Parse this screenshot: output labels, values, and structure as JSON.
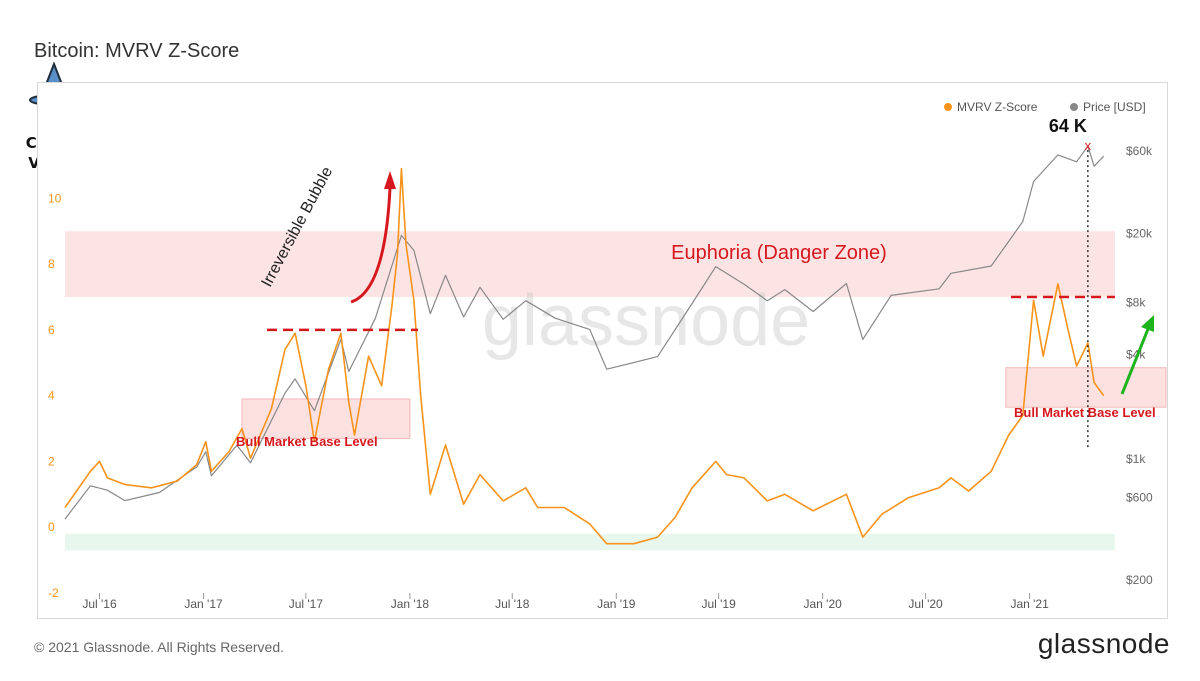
{
  "header": {
    "title": "Bitcoin: MVRV Z-Score"
  },
  "footer": {
    "copyright": "© 2021 Glassnode. All Rights Reserved.",
    "logo_text": "glassnode"
  },
  "watermark": {
    "text": "glassnode"
  },
  "brand_logo": {
    "line1": "Crypto",
    "line2": "VizArt"
  },
  "colors": {
    "mvrv": "#f7931a",
    "price": "#888888",
    "danger": "#d6171d",
    "green_arrow": "#1db31d",
    "danger_zone_fill": "#fde1e1",
    "safe_zone_fill": "#e4f6ec"
  },
  "chart_data": {
    "type": "line",
    "title": "Bitcoin: MVRV Z-Score",
    "x_ticks": [
      "Jul '16",
      "Jan '17",
      "Jul '17",
      "Jan '18",
      "Jul '18",
      "Jan '19",
      "Jul '19",
      "Jan '20",
      "Jul '20",
      "Jan '21"
    ],
    "y_left": {
      "ticks": [
        "-2",
        "0",
        "2",
        "4",
        "6",
        "8",
        "10"
      ],
      "ylim": [
        -2,
        11.5
      ]
    },
    "y_right": {
      "ticks": [
        "$200",
        "$600",
        "$1k",
        "$4k",
        "$8k",
        "$20k",
        "$60k"
      ],
      "scale": "log"
    },
    "legend": {
      "position": "top-right",
      "items": [
        "MVRV Z-Score",
        "Price [USD]"
      ]
    },
    "series": [
      {
        "name": "MVRV Z-Score",
        "axis": "left",
        "points": [
          [
            "2016-05-01",
            0.6
          ],
          [
            "2016-06-15",
            1.7
          ],
          [
            "2016-07-01",
            2.0
          ],
          [
            "2016-07-15",
            1.5
          ],
          [
            "2016-08-15",
            1.3
          ],
          [
            "2016-10-01",
            1.2
          ],
          [
            "2016-11-15",
            1.4
          ],
          [
            "2016-12-20",
            1.9
          ],
          [
            "2017-01-05",
            2.6
          ],
          [
            "2017-01-15",
            1.7
          ],
          [
            "2017-02-15",
            2.3
          ],
          [
            "2017-03-10",
            3.0
          ],
          [
            "2017-03-25",
            2.1
          ],
          [
            "2017-05-01",
            3.6
          ],
          [
            "2017-05-25",
            5.4
          ],
          [
            "2017-06-12",
            5.9
          ],
          [
            "2017-07-01",
            4.3
          ],
          [
            "2017-07-16",
            2.6
          ],
          [
            "2017-08-10",
            4.8
          ],
          [
            "2017-09-01",
            5.9
          ],
          [
            "2017-09-15",
            3.8
          ],
          [
            "2017-09-25",
            2.8
          ],
          [
            "2017-10-20",
            5.2
          ],
          [
            "2017-11-12",
            4.3
          ],
          [
            "2017-11-30",
            6.7
          ],
          [
            "2017-12-10",
            8.3
          ],
          [
            "2017-12-17",
            10.9
          ],
          [
            "2017-12-25",
            8.6
          ],
          [
            "2018-01-08",
            6.9
          ],
          [
            "2018-01-20",
            4.0
          ],
          [
            "2018-02-06",
            1.0
          ],
          [
            "2018-03-05",
            2.5
          ],
          [
            "2018-04-06",
            0.7
          ],
          [
            "2018-05-05",
            1.6
          ],
          [
            "2018-06-15",
            0.8
          ],
          [
            "2018-07-25",
            1.2
          ],
          [
            "2018-08-15",
            0.6
          ],
          [
            "2018-10-01",
            0.6
          ],
          [
            "2018-11-15",
            0.1
          ],
          [
            "2018-12-15",
            -0.5
          ],
          [
            "2019-02-01",
            -0.5
          ],
          [
            "2019-03-15",
            -0.3
          ],
          [
            "2019-04-15",
            0.3
          ],
          [
            "2019-05-15",
            1.2
          ],
          [
            "2019-06-26",
            2.0
          ],
          [
            "2019-07-15",
            1.6
          ],
          [
            "2019-08-15",
            1.5
          ],
          [
            "2019-09-25",
            0.8
          ],
          [
            "2019-10-26",
            1.0
          ],
          [
            "2019-12-15",
            0.5
          ],
          [
            "2020-02-12",
            1.0
          ],
          [
            "2020-03-12",
            -0.3
          ],
          [
            "2020-04-15",
            0.4
          ],
          [
            "2020-06-01",
            0.9
          ],
          [
            "2020-07-25",
            1.2
          ],
          [
            "2020-08-15",
            1.5
          ],
          [
            "2020-09-15",
            1.1
          ],
          [
            "2020-10-25",
            1.7
          ],
          [
            "2020-11-25",
            2.8
          ],
          [
            "2020-12-20",
            3.4
          ],
          [
            "2021-01-08",
            6.9
          ],
          [
            "2021-01-25",
            5.2
          ],
          [
            "2021-02-20",
            7.4
          ],
          [
            "2021-03-10",
            6.0
          ],
          [
            "2021-03-25",
            4.9
          ],
          [
            "2021-04-14",
            5.6
          ],
          [
            "2021-04-25",
            4.4
          ],
          [
            "2021-05-12",
            4.0
          ]
        ]
      },
      {
        "name": "Price [USD]",
        "axis": "right",
        "points": [
          [
            "2016-05-01",
            450
          ],
          [
            "2016-06-15",
            700
          ],
          [
            "2016-07-15",
            660
          ],
          [
            "2016-08-15",
            575
          ],
          [
            "2016-10-15",
            640
          ],
          [
            "2016-12-20",
            900
          ],
          [
            "2017-01-05",
            1100
          ],
          [
            "2017-01-15",
            800
          ],
          [
            "2017-03-01",
            1200
          ],
          [
            "2017-03-25",
            950
          ],
          [
            "2017-05-25",
            2400
          ],
          [
            "2017-06-12",
            2900
          ],
          [
            "2017-07-16",
            1900
          ],
          [
            "2017-09-01",
            4900
          ],
          [
            "2017-09-15",
            3200
          ],
          [
            "2017-11-01",
            6500
          ],
          [
            "2017-12-17",
            19500
          ],
          [
            "2018-01-08",
            16000
          ],
          [
            "2018-02-06",
            6900
          ],
          [
            "2018-03-05",
            11500
          ],
          [
            "2018-04-06",
            6600
          ],
          [
            "2018-05-05",
            9800
          ],
          [
            "2018-06-15",
            6400
          ],
          [
            "2018-07-25",
            8200
          ],
          [
            "2018-09-15",
            6500
          ],
          [
            "2018-11-15",
            5600
          ],
          [
            "2018-12-15",
            3300
          ],
          [
            "2019-03-15",
            3900
          ],
          [
            "2019-05-15",
            7900
          ],
          [
            "2019-06-26",
            12900
          ],
          [
            "2019-08-15",
            10200
          ],
          [
            "2019-09-25",
            8200
          ],
          [
            "2019-10-26",
            9500
          ],
          [
            "2019-12-15",
            7100
          ],
          [
            "2020-02-12",
            10300
          ],
          [
            "2020-03-12",
            4900
          ],
          [
            "2020-05-01",
            8800
          ],
          [
            "2020-07-25",
            9600
          ],
          [
            "2020-08-15",
            11800
          ],
          [
            "2020-10-25",
            13000
          ],
          [
            "2020-12-20",
            23500
          ],
          [
            "2021-01-08",
            40000
          ],
          [
            "2021-02-20",
            57000
          ],
          [
            "2021-03-25",
            52000
          ],
          [
            "2021-04-14",
            64000
          ],
          [
            "2021-04-25",
            49000
          ],
          [
            "2021-05-12",
            56000
          ]
        ]
      }
    ],
    "bands": [
      {
        "label": "Euphoria (Danger Zone)",
        "axis": "left",
        "from": 7,
        "to": 9
      },
      {
        "label": "",
        "axis": "left",
        "from": -0.7,
        "to": -0.2
      }
    ],
    "annotations": {
      "bubble_label": "Irreversible Bubble",
      "base_level_label": "Bull Market Base Level",
      "euphoria_label": "Euphoria (Danger Zone)",
      "ath_label": "64 K",
      "ath_marker": "x"
    }
  }
}
